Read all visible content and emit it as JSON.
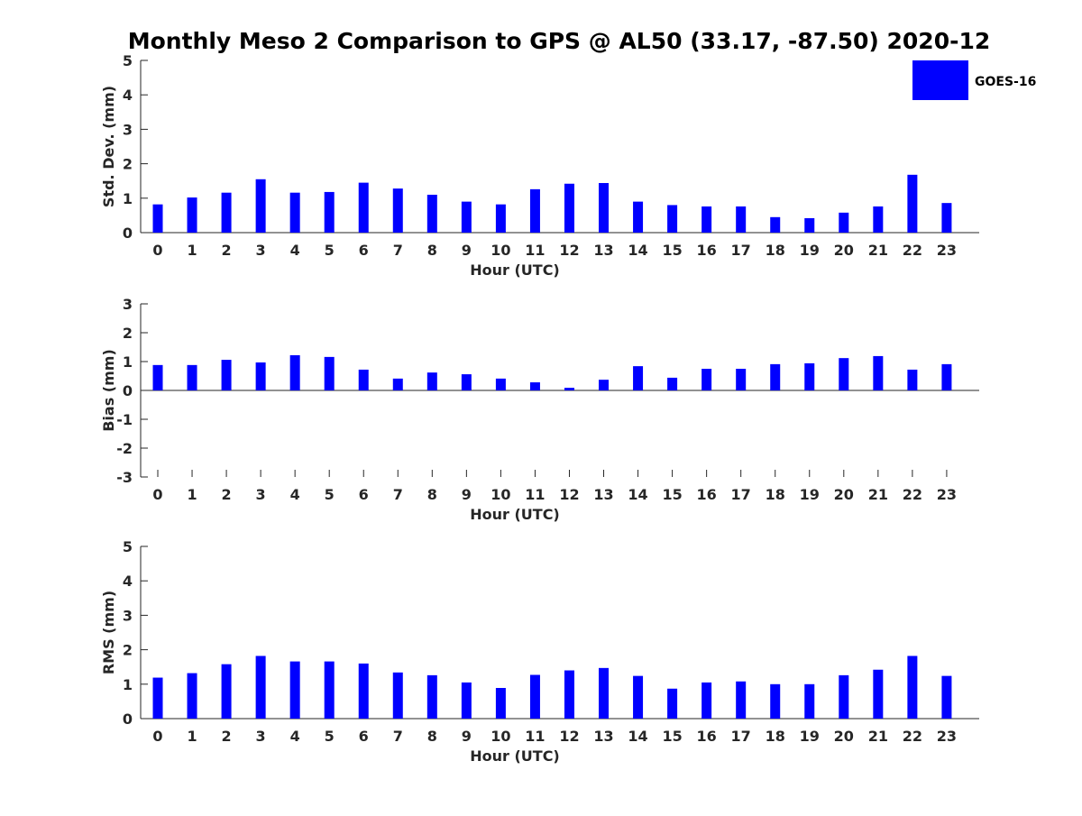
{
  "title": "Monthly Meso 2 Comparison to GPS @ AL50 (33.17, -87.50) 2020-12",
  "legend": {
    "label": "GOES-16",
    "placement": "top-right"
  },
  "colors": {
    "bar": "#0000ff",
    "axis": "#262626"
  },
  "chart_data": [
    {
      "type": "bar",
      "xlabel": "Hour (UTC)",
      "ylabel": "Std. Dev. (mm)",
      "ylim": [
        0,
        5
      ],
      "yticks": [
        0,
        1,
        2,
        3,
        4,
        5
      ],
      "categories": [
        "0",
        "1",
        "2",
        "3",
        "4",
        "5",
        "6",
        "7",
        "8",
        "9",
        "10",
        "11",
        "12",
        "13",
        "14",
        "15",
        "16",
        "17",
        "18",
        "19",
        "20",
        "21",
        "22",
        "23"
      ],
      "series": [
        {
          "name": "GOES-16",
          "values": [
            0.82,
            1.02,
            1.16,
            1.55,
            1.16,
            1.18,
            1.45,
            1.28,
            1.1,
            0.9,
            0.82,
            1.26,
            1.42,
            1.44,
            0.9,
            0.8,
            0.76,
            0.76,
            0.45,
            0.42,
            0.58,
            0.76,
            1.68,
            0.86
          ]
        }
      ]
    },
    {
      "type": "bar",
      "xlabel": "Hour (UTC)",
      "ylabel": "Bias (mm)",
      "ylim": [
        -3,
        3
      ],
      "yticks": [
        -3,
        -2,
        -1,
        0,
        1,
        2,
        3
      ],
      "categories": [
        "0",
        "1",
        "2",
        "3",
        "4",
        "5",
        "6",
        "7",
        "8",
        "9",
        "10",
        "11",
        "12",
        "13",
        "14",
        "15",
        "16",
        "17",
        "18",
        "19",
        "20",
        "21",
        "22",
        "23"
      ],
      "series": [
        {
          "name": "GOES-16",
          "values": [
            0.88,
            0.88,
            1.06,
            0.97,
            1.22,
            1.16,
            0.72,
            0.41,
            0.62,
            0.56,
            0.41,
            0.28,
            0.09,
            0.37,
            0.84,
            0.44,
            0.75,
            0.75,
            0.91,
            0.94,
            1.12,
            1.19,
            0.72,
            0.91
          ]
        }
      ]
    },
    {
      "type": "bar",
      "xlabel": "Hour (UTC)",
      "ylabel": "RMS (mm)",
      "ylim": [
        0,
        5
      ],
      "yticks": [
        0,
        1,
        2,
        3,
        4,
        5
      ],
      "categories": [
        "0",
        "1",
        "2",
        "3",
        "4",
        "5",
        "6",
        "7",
        "8",
        "9",
        "10",
        "11",
        "12",
        "13",
        "14",
        "15",
        "16",
        "17",
        "18",
        "19",
        "20",
        "21",
        "22",
        "23"
      ],
      "series": [
        {
          "name": "GOES-16",
          "values": [
            1.19,
            1.32,
            1.58,
            1.82,
            1.66,
            1.66,
            1.6,
            1.34,
            1.26,
            1.05,
            0.89,
            1.27,
            1.4,
            1.47,
            1.24,
            0.87,
            1.05,
            1.08,
            1.0,
            1.0,
            1.26,
            1.42,
            1.82,
            1.24
          ]
        }
      ]
    }
  ]
}
